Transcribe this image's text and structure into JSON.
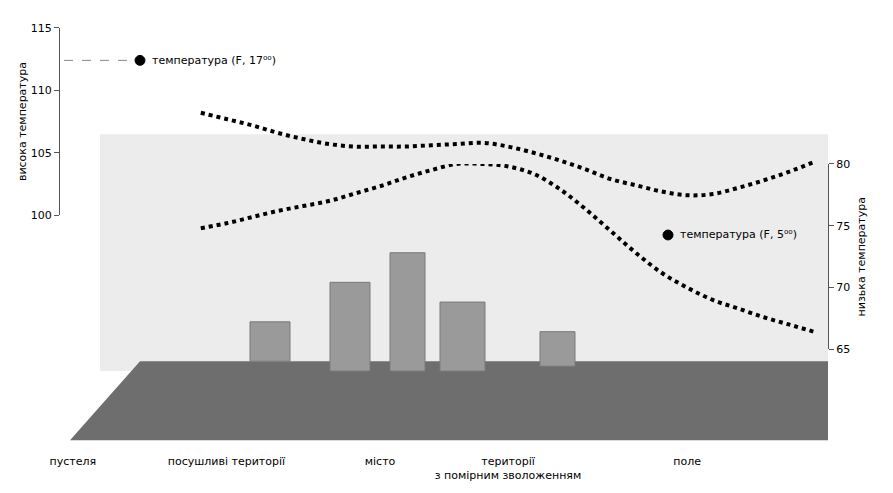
{
  "chart_data": {
    "type": "line",
    "categories": [
      "пустеля",
      null,
      null,
      null,
      null,
      null,
      "посушливі території",
      null,
      null,
      null,
      null,
      null,
      "місто",
      null,
      null,
      null,
      null,
      "території з помірним зволоженням",
      null,
      null,
      null,
      null,
      null,
      null,
      "поле",
      null,
      null,
      null,
      null,
      null
    ],
    "series": [
      {
        "name": "температура (F, 17⁰⁰)",
        "color": "#000000",
        "line_style": "dotted",
        "values": [
          null,
          null,
          null,
          null,
          null,
          108.2,
          107.7,
          107.2,
          106.6,
          106.1,
          105.7,
          105.5,
          105.5,
          105.5,
          105.6,
          105.7,
          105.8,
          105.5,
          105.0,
          104.4,
          103.7,
          102.9,
          102.4,
          101.9,
          101.6,
          101.7,
          102.2,
          102.8,
          103.5,
          104.3
        ]
      },
      {
        "name": "температура (F, 5⁰⁰)",
        "axis": "y2",
        "color": "#000000",
        "line_style": "dotted",
        "values": [
          null,
          null,
          null,
          null,
          null,
          74.8,
          75.2,
          75.7,
          76.2,
          76.6,
          77.0,
          77.6,
          78.2,
          78.9,
          79.5,
          80.0,
          80.0,
          79.8,
          79.2,
          78.0,
          76.4,
          74.6,
          72.8,
          71.2,
          70.0,
          69.0,
          68.3,
          67.6,
          67.0,
          66.4
        ]
      }
    ],
    "y_label": "висока температура",
    "y2_label": "низька температура",
    "ylim": [
      100,
      115
    ],
    "yticks": [
      100,
      105,
      110,
      115
    ],
    "y2lim": [
      65,
      80
    ],
    "y2ticks": [
      65,
      70,
      75,
      80
    ],
    "grid": false
  }
}
